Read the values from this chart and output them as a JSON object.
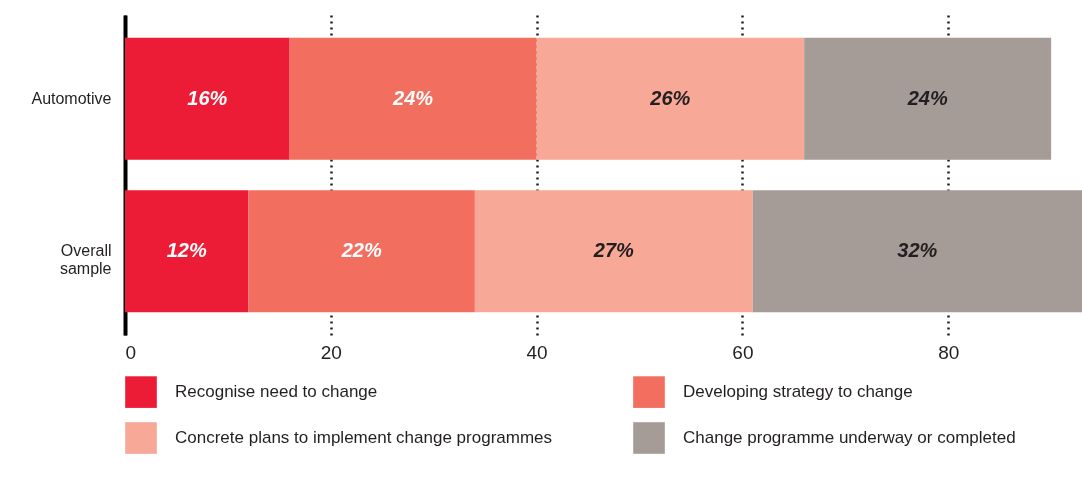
{
  "chart_data": {
    "type": "bar",
    "orientation": "horizontal",
    "stacked": true,
    "categories": [
      "Automotive",
      "Overall sample"
    ],
    "series": [
      {
        "name": "Recognise need to change",
        "color": "#ed1c36",
        "values": [
          16,
          12
        ],
        "value_labels": [
          "16%",
          "12%"
        ]
      },
      {
        "name": "Developing strategy to change",
        "color": "#f26f5f",
        "values": [
          24,
          22
        ],
        "value_labels": [
          "24%",
          "22%"
        ]
      },
      {
        "name": "Concrete plans to implement change programmes",
        "color": "#f7a896",
        "values": [
          26,
          27
        ],
        "value_labels": [
          "26%",
          "27%"
        ]
      },
      {
        "name": "Change programme underway or completed",
        "color": "#a59c97",
        "values": [
          24,
          32
        ],
        "value_labels": [
          "24%",
          "32%"
        ]
      }
    ],
    "xlim": [
      0,
      93
    ],
    "xticks": [
      0,
      20,
      40,
      60,
      80
    ],
    "grid": "x",
    "legend": "bottom"
  }
}
